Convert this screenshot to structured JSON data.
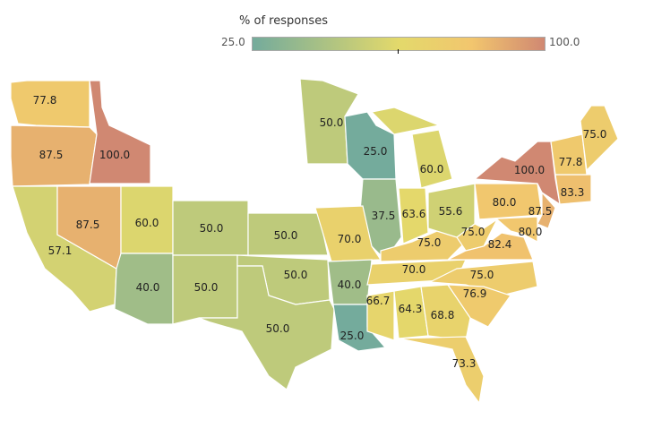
{
  "legend": {
    "title": "% of responses",
    "min": "25.0",
    "max": "100.0",
    "colors": [
      "#74ab9c",
      "#e3d96b",
      "#f2c66e",
      "#d08872"
    ]
  },
  "states": [
    {
      "id": "WA",
      "value": 77.8,
      "label": "77.8"
    },
    {
      "id": "OR",
      "value": 87.5,
      "label": "87.5"
    },
    {
      "id": "ID",
      "value": 100.0,
      "label": "100.0"
    },
    {
      "id": "CA",
      "value": 57.1,
      "label": "57.1"
    },
    {
      "id": "NV",
      "value": 87.5,
      "label": "87.5"
    },
    {
      "id": "UT",
      "value": 60.0,
      "label": "60.0"
    },
    {
      "id": "AZ",
      "value": 40.0,
      "label": "40.0"
    },
    {
      "id": "CO",
      "value": 50.0,
      "label": "50.0"
    },
    {
      "id": "NM",
      "value": 50.0,
      "label": "50.0"
    },
    {
      "id": "KS",
      "value": 50.0,
      "label": "50.0"
    },
    {
      "id": "OK",
      "value": 50.0,
      "label": "50.0"
    },
    {
      "id": "TX",
      "value": 50.0,
      "label": "50.0"
    },
    {
      "id": "MN",
      "value": 50.0,
      "label": "50.0"
    },
    {
      "id": "WI",
      "value": 25.0,
      "label": "25.0"
    },
    {
      "id": "IL",
      "value": 37.5,
      "label": "37.5"
    },
    {
      "id": "MO",
      "value": 70.0,
      "label": "70.0"
    },
    {
      "id": "AR",
      "value": 40.0,
      "label": "40.0"
    },
    {
      "id": "LA",
      "value": 25.0,
      "label": "25.0"
    },
    {
      "id": "MS",
      "value": 66.7,
      "label": "66.7"
    },
    {
      "id": "AL",
      "value": 64.3,
      "label": "64.3"
    },
    {
      "id": "GA",
      "value": 68.8,
      "label": "68.8"
    },
    {
      "id": "FL",
      "value": 73.3,
      "label": "73.3"
    },
    {
      "id": "TN",
      "value": 70.0,
      "label": "70.0"
    },
    {
      "id": "KY",
      "value": 75.0,
      "label": "75.0"
    },
    {
      "id": "IN",
      "value": 63.6,
      "label": "63.6"
    },
    {
      "id": "OH",
      "value": 55.6,
      "label": "55.6"
    },
    {
      "id": "MI",
      "value": 60.0,
      "label": "60.0"
    },
    {
      "id": "WV",
      "value": 75.0,
      "label": "75.0"
    },
    {
      "id": "VA",
      "value": 82.4,
      "label": "82.4"
    },
    {
      "id": "NC",
      "value": 75.0,
      "label": "75.0"
    },
    {
      "id": "SC",
      "value": 76.9,
      "label": "76.9"
    },
    {
      "id": "PA",
      "value": 80.0,
      "label": "80.0"
    },
    {
      "id": "NY",
      "value": 100.0,
      "label": "100.0"
    },
    {
      "id": "NJ",
      "value": 87.5,
      "label": "87.5"
    },
    {
      "id": "MD",
      "value": 80.0,
      "label": "80.0"
    },
    {
      "id": "MA",
      "value": 83.3,
      "label": "83.3"
    },
    {
      "id": "NH",
      "value": 77.8,
      "label": "77.8"
    },
    {
      "id": "ME",
      "value": 75.0,
      "label": "75.0"
    }
  ]
}
